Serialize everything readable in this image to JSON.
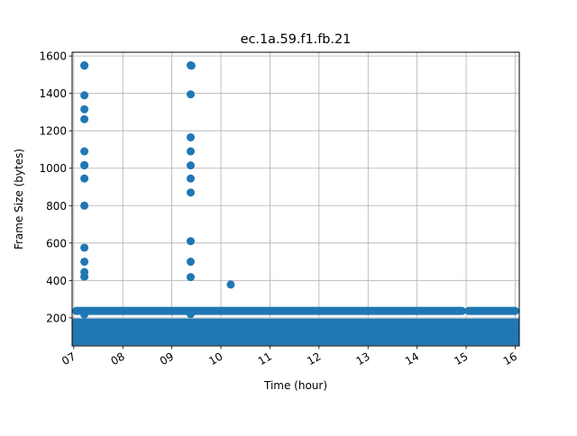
{
  "chart_data": {
    "type": "scatter",
    "title": "ec.1a.59.f1.fb.21",
    "xlabel": "Time (hour)",
    "ylabel": "Frame Size (bytes)",
    "xlim": [
      "06:58",
      "16:05"
    ],
    "ylim": [
      50,
      1620
    ],
    "grid": true,
    "x_ticks": [
      {
        "time": "07:00",
        "label": "07"
      },
      {
        "time": "08:00",
        "label": "08"
      },
      {
        "time": "09:00",
        "label": "09"
      },
      {
        "time": "10:00",
        "label": "10"
      },
      {
        "time": "11:00",
        "label": "11"
      },
      {
        "time": "12:00",
        "label": "12"
      },
      {
        "time": "13:00",
        "label": "13"
      },
      {
        "time": "14:00",
        "label": "14"
      },
      {
        "time": "15:00",
        "label": "15"
      },
      {
        "time": "16:00",
        "label": "16"
      }
    ],
    "y_ticks": [
      200,
      400,
      600,
      800,
      1000,
      1200,
      1400,
      1600
    ],
    "color": "#1f77b4",
    "bands": [
      {
        "from": "06:59",
        "to": "16:05",
        "y_min": 75,
        "y_max": 150
      },
      {
        "from": "06:59",
        "to": "16:05",
        "y_min": 150,
        "y_max": 175
      },
      {
        "from": "06:59",
        "to": "14:55",
        "y": 237
      },
      {
        "from": "15:03",
        "to": "16:05",
        "y": 237
      }
    ],
    "points": [
      {
        "x": "07:13",
        "y": 1550
      },
      {
        "x": "07:13",
        "y": 1548
      },
      {
        "x": "07:13",
        "y": 1390
      },
      {
        "x": "07:13",
        "y": 1315
      },
      {
        "x": "07:13",
        "y": 1262
      },
      {
        "x": "07:13",
        "y": 1090
      },
      {
        "x": "07:13",
        "y": 1015
      },
      {
        "x": "07:13",
        "y": 1017
      },
      {
        "x": "07:13",
        "y": 945
      },
      {
        "x": "07:13",
        "y": 800
      },
      {
        "x": "07:13",
        "y": 575
      },
      {
        "x": "07:13",
        "y": 500
      },
      {
        "x": "07:13",
        "y": 445
      },
      {
        "x": "07:13",
        "y": 420
      },
      {
        "x": "07:13",
        "y": 218
      },
      {
        "x": "09:23",
        "y": 1550
      },
      {
        "x": "09:24",
        "y": 1548
      },
      {
        "x": "09:23",
        "y": 1395
      },
      {
        "x": "09:23",
        "y": 1165
      },
      {
        "x": "09:23",
        "y": 1090
      },
      {
        "x": "09:23",
        "y": 1015
      },
      {
        "x": "09:23",
        "y": 945
      },
      {
        "x": "09:23",
        "y": 870
      },
      {
        "x": "09:23",
        "y": 610
      },
      {
        "x": "09:23",
        "y": 500
      },
      {
        "x": "09:23",
        "y": 418
      },
      {
        "x": "09:23",
        "y": 220
      },
      {
        "x": "10:12",
        "y": 378
      }
    ]
  }
}
